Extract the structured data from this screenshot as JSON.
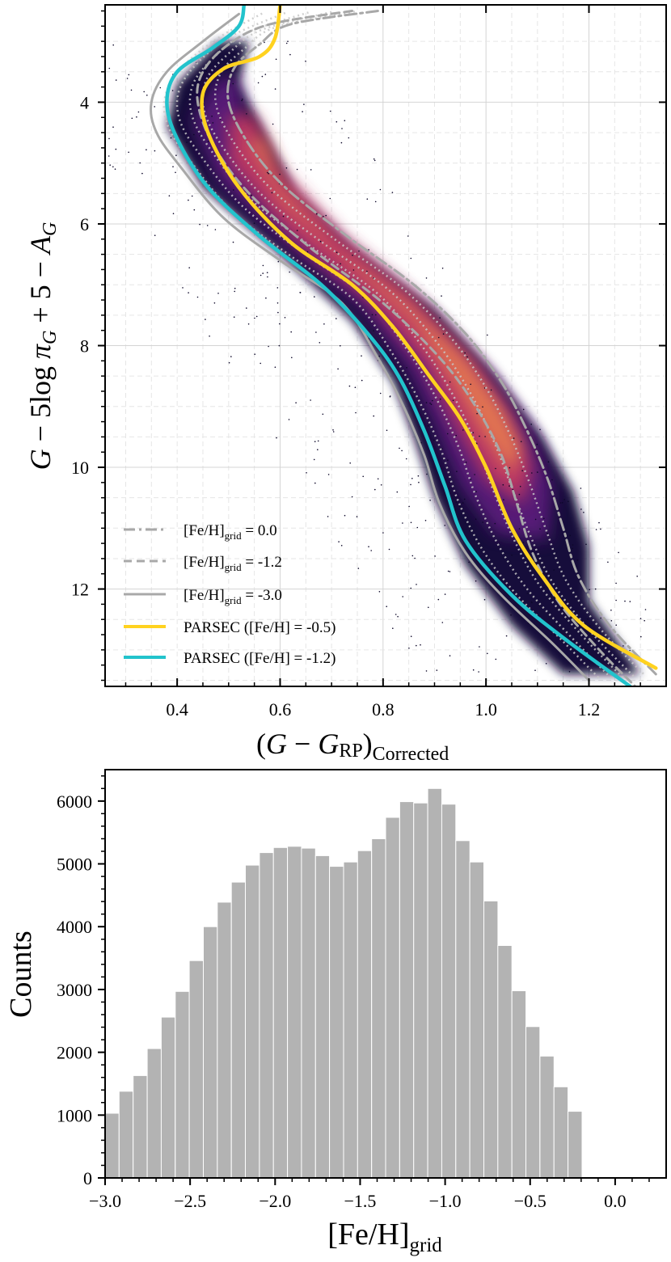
{
  "chart_data": [
    {
      "type": "scatter",
      "title": "",
      "xlabel": "(G − G_RP)_Corrected",
      "ylabel": "G − 5log π_G + 5 − A_G",
      "xlim": [
        0.26,
        1.35
      ],
      "ylim": [
        13.6,
        2.4
      ],
      "y_inverted": true,
      "grid": true,
      "x_ticks": [
        0.4,
        0.6,
        0.8,
        1.0,
        1.2
      ],
      "x_tick_labels": [
        "0.4",
        "0.6",
        "0.8",
        "1.0",
        "1.2"
      ],
      "y_ticks": [
        4,
        6,
        8,
        10,
        12
      ],
      "y_tick_labels": [
        "4",
        "6",
        "8",
        "10",
        "12"
      ],
      "density_colormap": "inferno",
      "legend_position": "lower-left",
      "legend": [
        {
          "label": "[Fe/H]grid = 0.0",
          "main": "[Fe/H]",
          "sub": "grid",
          "tail": " = 0.0",
          "style": "dashdot",
          "color": "#a8a8a8"
        },
        {
          "label": "[Fe/H]grid = -1.2",
          "main": "[Fe/H]",
          "sub": "grid",
          "tail": " = -1.2",
          "style": "dashed",
          "color": "#a8a8a8"
        },
        {
          "label": "[Fe/H]grid = -3.0",
          "main": "[Fe/H]",
          "sub": "grid",
          "tail": " = -3.0",
          "style": "solid",
          "color": "#a8a8a8"
        },
        {
          "label": "PARSEC ([Fe/H] = -0.5)",
          "main": "PARSEC ([Fe/H] = -0.5)",
          "sub": "",
          "tail": "",
          "style": "solid",
          "color": "#ffd21f"
        },
        {
          "label": "PARSEC ([Fe/H] = -1.2)",
          "main": "PARSEC ([Fe/H] = -1.2)",
          "sub": "",
          "tail": "",
          "style": "solid",
          "color": "#22c3cc"
        }
      ],
      "series": [
        {
          "name": "[Fe/H]grid = 0.0",
          "style": "dashdot",
          "color": "#a8a8a8",
          "points": [
            [
              0.79,
              2.5
            ],
            [
              0.62,
              2.72
            ],
            [
              0.56,
              3.05
            ],
            [
              0.51,
              3.45
            ],
            [
              0.5,
              4.0
            ],
            [
              0.54,
              4.7
            ],
            [
              0.61,
              5.4
            ],
            [
              0.73,
              6.2
            ],
            [
              0.86,
              7.0
            ],
            [
              0.96,
              7.8
            ],
            [
              1.03,
              8.6
            ],
            [
              1.08,
              9.4
            ],
            [
              1.12,
              10.2
            ],
            [
              1.15,
              11.0
            ],
            [
              1.18,
              11.8
            ],
            [
              1.24,
              12.6
            ],
            [
              1.33,
              13.4
            ]
          ]
        },
        {
          "name": "[Fe/H]grid = -1.2",
          "style": "dashed",
          "color": "#a8a8a8",
          "points": [
            [
              0.74,
              2.5
            ],
            [
              0.58,
              2.72
            ],
            [
              0.5,
              3.05
            ],
            [
              0.45,
              3.5
            ],
            [
              0.44,
              4.0
            ],
            [
              0.47,
              4.7
            ],
            [
              0.54,
              5.5
            ],
            [
              0.66,
              6.4
            ],
            [
              0.8,
              7.3
            ],
            [
              0.91,
              8.2
            ],
            [
              0.98,
              9.0
            ],
            [
              1.03,
              9.8
            ],
            [
              1.06,
              10.6
            ],
            [
              1.09,
              11.4
            ],
            [
              1.14,
              12.2
            ],
            [
              1.22,
              13.0
            ],
            [
              1.29,
              13.6
            ]
          ]
        },
        {
          "name": "[Fe/H]grid = -3.0",
          "style": "solid",
          "color": "#a8a8a8",
          "points": [
            [
              0.52,
              2.55
            ],
            [
              0.45,
              3.0
            ],
            [
              0.38,
              3.5
            ],
            [
              0.35,
              4.0
            ],
            [
              0.36,
              4.5
            ],
            [
              0.41,
              5.1
            ],
            [
              0.49,
              5.9
            ],
            [
              0.6,
              6.6
            ],
            [
              0.72,
              7.3
            ],
            [
              0.79,
              8.2
            ],
            [
              0.84,
              9.0
            ],
            [
              0.88,
              9.8
            ],
            [
              0.91,
              10.6
            ],
            [
              0.96,
              11.4
            ],
            [
              1.03,
              12.1
            ],
            [
              1.13,
              12.9
            ],
            [
              1.2,
              13.5
            ]
          ]
        },
        {
          "name": "PARSEC ([Fe/H] = -0.5)",
          "style": "solid",
          "color": "#ffd21f",
          "points": [
            [
              0.6,
              2.4
            ],
            [
              0.59,
              2.95
            ],
            [
              0.56,
              3.25
            ],
            [
              0.49,
              3.45
            ],
            [
              0.45,
              3.85
            ],
            [
              0.46,
              4.5
            ],
            [
              0.52,
              5.4
            ],
            [
              0.62,
              6.3
            ],
            [
              0.74,
              7.0
            ],
            [
              0.82,
              7.7
            ],
            [
              0.89,
              8.5
            ],
            [
              0.95,
              9.2
            ],
            [
              1.0,
              10.0
            ],
            [
              1.05,
              11.0
            ],
            [
              1.11,
              11.8
            ],
            [
              1.19,
              12.6
            ],
            [
              1.33,
              13.3
            ]
          ]
        },
        {
          "name": "PARSEC ([Fe/H] = -1.2)",
          "style": "solid",
          "color": "#22c3cc",
          "points": [
            [
              0.53,
              2.4
            ],
            [
              0.52,
              2.75
            ],
            [
              0.47,
              3.1
            ],
            [
              0.4,
              3.5
            ],
            [
              0.38,
              4.0
            ],
            [
              0.4,
              4.6
            ],
            [
              0.46,
              5.4
            ],
            [
              0.56,
              6.2
            ],
            [
              0.68,
              7.0
            ],
            [
              0.77,
              7.8
            ],
            [
              0.83,
              8.5
            ],
            [
              0.88,
              9.4
            ],
            [
              0.92,
              10.3
            ],
            [
              0.96,
              11.2
            ],
            [
              1.05,
              12.1
            ],
            [
              1.15,
              12.8
            ],
            [
              1.28,
              13.6
            ]
          ]
        }
      ]
    },
    {
      "type": "bar",
      "title": "",
      "xlabel": "[Fe/H]grid",
      "xlabel_main": "[Fe/H]",
      "xlabel_sub": "grid",
      "ylabel": "Counts",
      "xlim": [
        -3.0,
        0.3
      ],
      "ylim": [
        0,
        6500
      ],
      "bar_color": "#b3b3b3",
      "x_ticks": [
        -3.0,
        -2.5,
        -2.0,
        -1.5,
        -1.0,
        -0.5,
        0.0
      ],
      "x_tick_labels": [
        "−3.0",
        "−2.5",
        "−2.0",
        "−1.5",
        "−1.0",
        "−0.5",
        "0.0"
      ],
      "y_ticks": [
        0,
        1000,
        2000,
        3000,
        4000,
        5000,
        6000
      ],
      "y_tick_labels": [
        "0",
        "1000",
        "2000",
        "3000",
        "4000",
        "5000",
        "6000"
      ],
      "bin_edges_start": -3.0,
      "bin_width": 0.0825,
      "values": [
        1030,
        1380,
        1630,
        2060,
        2560,
        2970,
        3460,
        4000,
        4390,
        4710,
        4980,
        5180,
        5260,
        5280,
        5250,
        5130,
        4960,
        5030,
        5210,
        5400,
        5740,
        5990,
        5970,
        6200,
        5950,
        5370,
        5030,
        4410,
        3700,
        2980,
        2410,
        1940,
        1450,
        1060
      ]
    }
  ]
}
